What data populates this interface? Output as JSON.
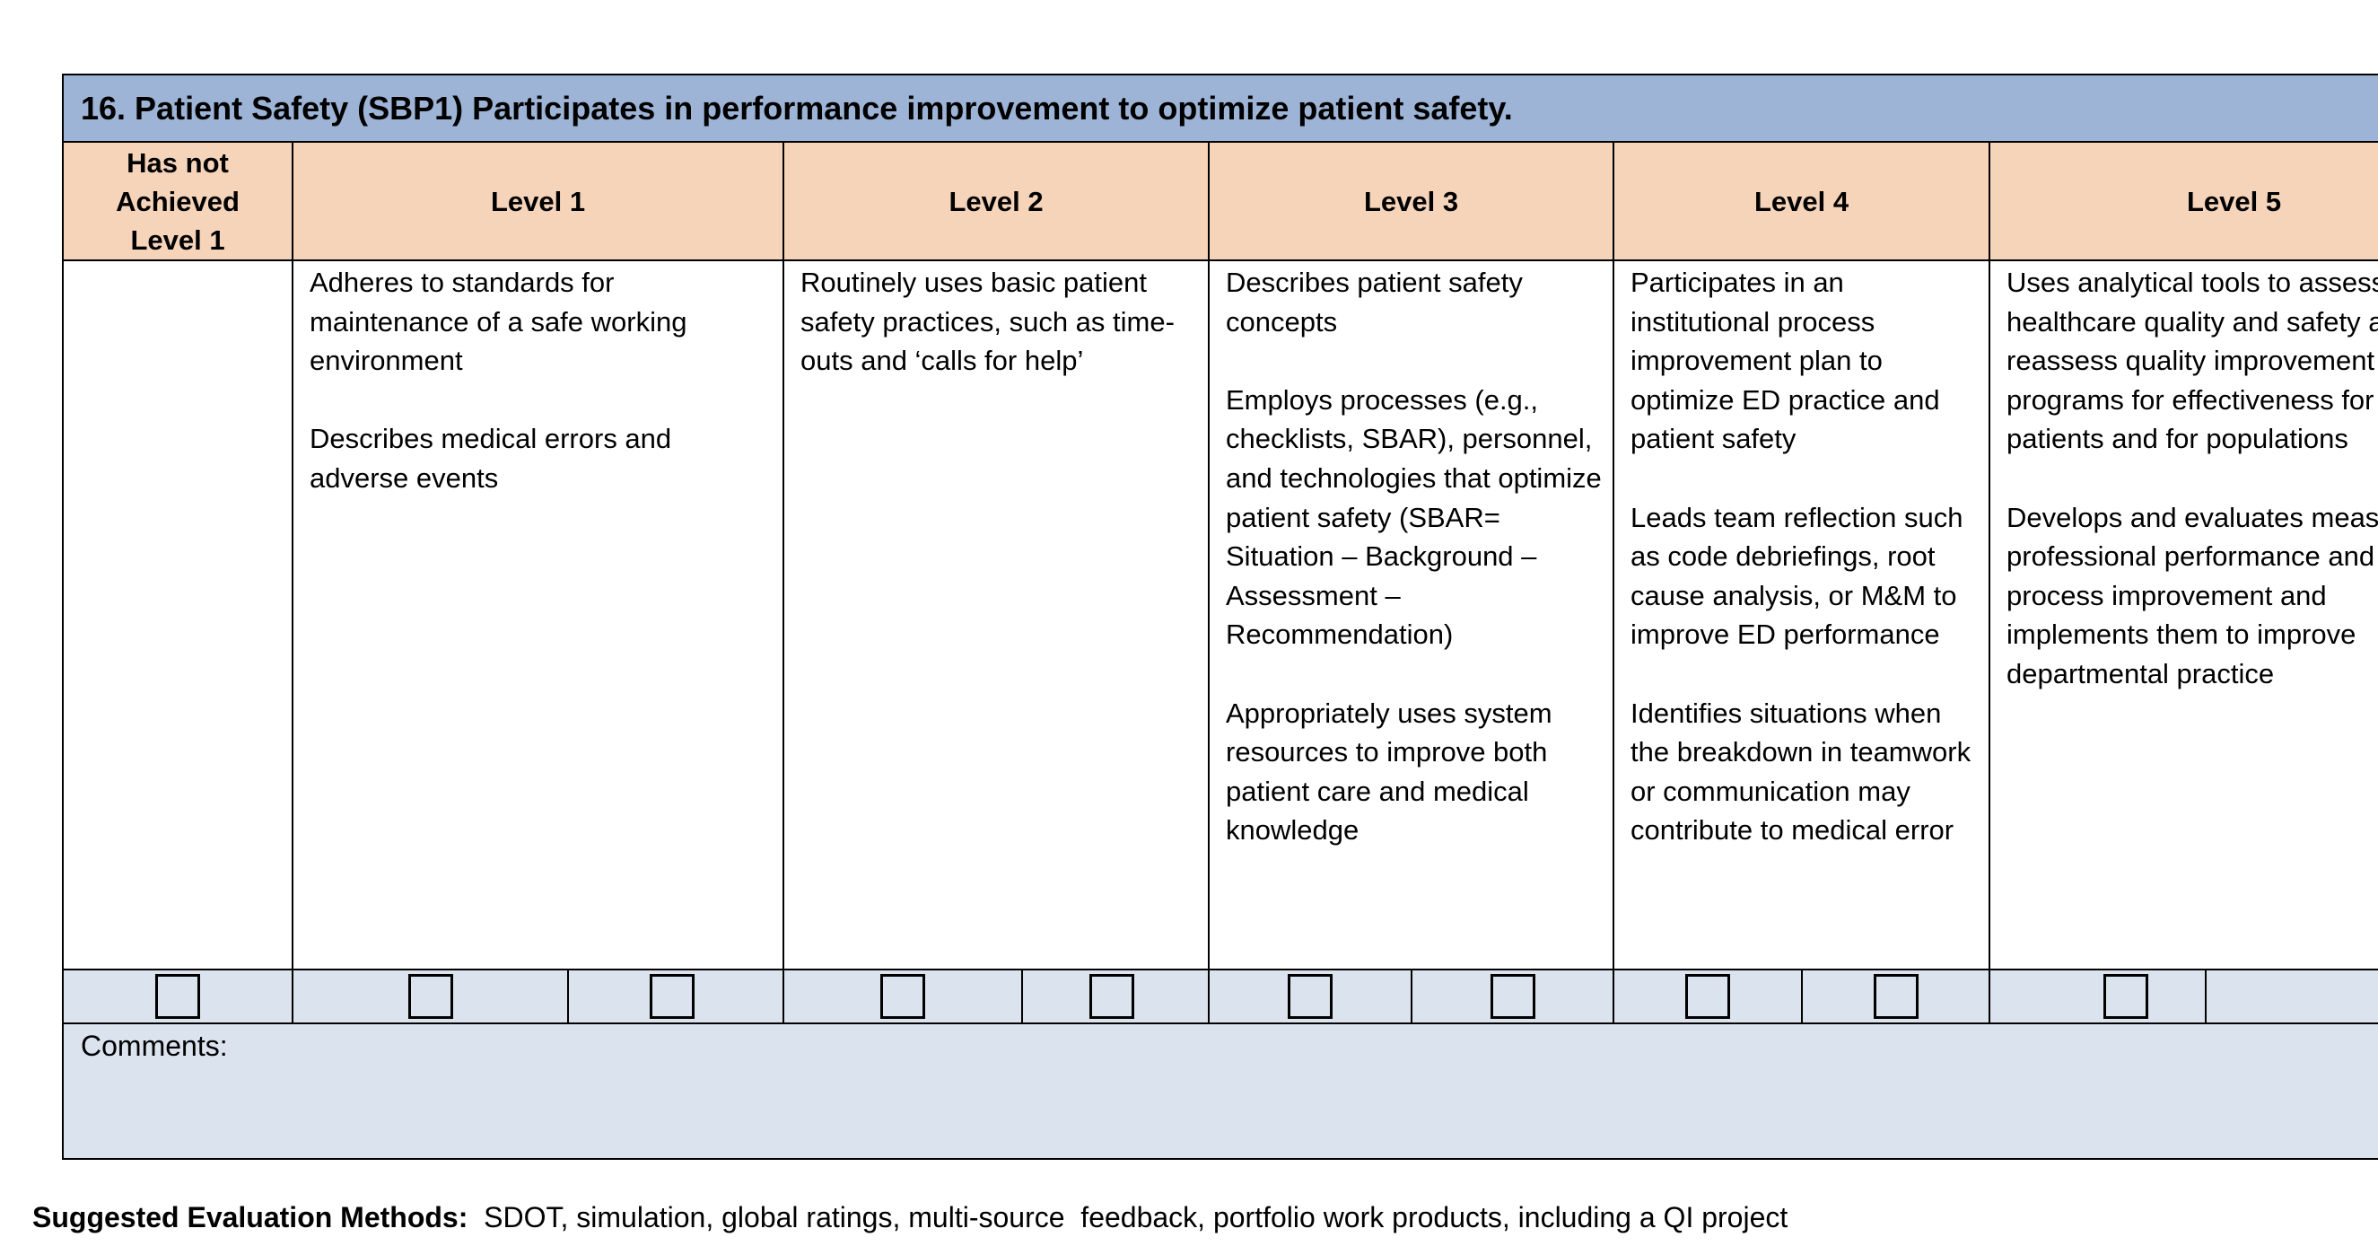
{
  "title": "16. Patient Safety (SBP1) Participates in performance improvement to optimize patient safety.",
  "headers": {
    "not_achieved": [
      "Has not",
      "Achieved",
      "Level 1"
    ],
    "level1": "Level 1",
    "level2": "Level 2",
    "level3": "Level 3",
    "level4": "Level 4",
    "level5": "Level 5"
  },
  "levels": {
    "level1": [
      "Adheres to standards for maintenance of a safe working environment",
      "Describes medical errors and adverse events"
    ],
    "level2": [
      "Routinely uses basic patient safety practices, such as time-outs and ‘calls for help’"
    ],
    "level3": [
      "Describes patient safety concepts",
      "Employs processes (e.g., checklists, SBAR), personnel, and technologies that optimize patient safety (SBAR= Situation – Background – Assessment – Recommendation)",
      "Appropriately uses system resources to improve both patient care and medical knowledge"
    ],
    "level4": [
      "Participates in an institutional process improvement plan to optimize ED practice and patient safety",
      "Leads team reflection such as code debriefings, root cause analysis, or M&M to improve ED performance",
      "Identifies situations when the breakdown in teamwork or communication may contribute to medical error"
    ],
    "level5": [
      "Uses analytical tools to assess healthcare quality and safety and reassess quality improvement programs for effectiveness for patients and for populations",
      "Develops and evaluates measures of professional performance and process improvement and implements them to improve departmental practice"
    ]
  },
  "comments_label": "Comments:",
  "evaluation": {
    "label": "Suggested Evaluation Methods:",
    "text": "SDOT, simulation, global ratings, multi-source  feedback, portfolio work products, including a QI project"
  }
}
